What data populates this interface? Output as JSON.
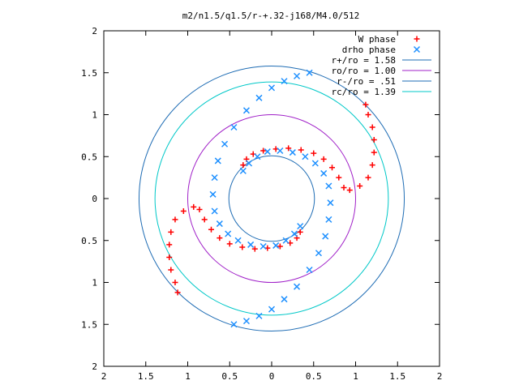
{
  "chart_data": {
    "type": "scatter",
    "title": "m2/n1.5/q1.5/r-+.32-j168/M4.0/512",
    "xlim": [
      -2,
      2
    ],
    "ylim": [
      -2,
      2
    ],
    "x_ticks": [
      -2,
      -1.5,
      -1,
      -0.5,
      0,
      0.5,
      1,
      1.5,
      2
    ],
    "y_ticks": [
      -2,
      -1.5,
      -1,
      -0.5,
      0,
      0.5,
      1,
      1.5,
      2
    ],
    "x_tick_labels": [
      "2",
      "1.5",
      "1",
      "0.5",
      "0",
      "0.5",
      "1",
      "1.5",
      "2"
    ],
    "y_tick_labels": [
      "2",
      "1.5",
      "1",
      "0.5",
      "0",
      "0.5",
      "1",
      "1.5",
      "2"
    ],
    "grid": false,
    "legend_position": "top-right",
    "legend": [
      {
        "label": "W phase",
        "marker": "+",
        "color": "#ff0000"
      },
      {
        "label": "drho phase",
        "marker": "x",
        "color": "#1e90ff"
      },
      {
        "label": "r+/ro = 1.58",
        "line": true,
        "color": "#1e6cb4"
      },
      {
        "label": "ro/ro = 1.00",
        "line": true,
        "color": "#a020c8"
      },
      {
        "label": "r-/ro = .51",
        "line": true,
        "color": "#1e6cb4"
      },
      {
        "label": "rc/ro = 1.39",
        "line": true,
        "color": "#00c8c8"
      }
    ],
    "circles": [
      {
        "name": "r+/ro = 1.58",
        "r": 1.58,
        "color": "#1e6cb4"
      },
      {
        "name": "ro/ro = 1.00",
        "r": 1.0,
        "color": "#a020c8"
      },
      {
        "name": "r-/ro = .51",
        "r": 0.51,
        "color": "#1e6cb4"
      },
      {
        "name": "rc/ro = 1.39",
        "r": 1.39,
        "color": "#00c8c8"
      }
    ],
    "series": [
      {
        "name": "W phase",
        "color": "#ff0000",
        "marker": "+",
        "points": [
          [
            1.12,
            1.12
          ],
          [
            1.15,
            1.0
          ],
          [
            1.2,
            0.85
          ],
          [
            1.22,
            0.7
          ],
          [
            1.22,
            0.55
          ],
          [
            1.2,
            0.4
          ],
          [
            1.15,
            0.25
          ],
          [
            1.05,
            0.15
          ],
          [
            0.93,
            0.1
          ],
          [
            0.86,
            0.13
          ],
          [
            0.8,
            0.25
          ],
          [
            0.72,
            0.37
          ],
          [
            0.62,
            0.47
          ],
          [
            0.5,
            0.54
          ],
          [
            0.35,
            0.58
          ],
          [
            0.2,
            0.6
          ],
          [
            0.05,
            0.59
          ],
          [
            -0.1,
            0.57
          ],
          [
            -0.22,
            0.53
          ],
          [
            -0.3,
            0.47
          ],
          [
            -0.34,
            0.4
          ],
          [
            -1.12,
            -1.12
          ],
          [
            -1.15,
            -1.0
          ],
          [
            -1.2,
            -0.85
          ],
          [
            -1.22,
            -0.7
          ],
          [
            -1.22,
            -0.55
          ],
          [
            -1.2,
            -0.4
          ],
          [
            -1.15,
            -0.25
          ],
          [
            -1.05,
            -0.15
          ],
          [
            -0.93,
            -0.1
          ],
          [
            -0.86,
            -0.13
          ],
          [
            -0.8,
            -0.25
          ],
          [
            -0.72,
            -0.37
          ],
          [
            -0.62,
            -0.47
          ],
          [
            -0.5,
            -0.54
          ],
          [
            -0.35,
            -0.58
          ],
          [
            -0.2,
            -0.6
          ],
          [
            -0.05,
            -0.59
          ],
          [
            0.1,
            -0.57
          ],
          [
            0.22,
            -0.53
          ],
          [
            0.3,
            -0.47
          ],
          [
            0.34,
            -0.4
          ]
        ]
      },
      {
        "name": "drho phase",
        "color": "#1e90ff",
        "marker": "x",
        "points": [
          [
            0.45,
            1.5
          ],
          [
            0.3,
            1.46
          ],
          [
            0.15,
            1.4
          ],
          [
            0.0,
            1.32
          ],
          [
            -0.15,
            1.2
          ],
          [
            -0.3,
            1.05
          ],
          [
            -0.45,
            0.85
          ],
          [
            -0.56,
            0.65
          ],
          [
            -0.64,
            0.45
          ],
          [
            -0.68,
            0.25
          ],
          [
            -0.7,
            0.05
          ],
          [
            -0.68,
            -0.15
          ],
          [
            -0.62,
            -0.3
          ],
          [
            -0.52,
            -0.42
          ],
          [
            -0.4,
            -0.5
          ],
          [
            -0.25,
            -0.55
          ],
          [
            -0.1,
            -0.57
          ],
          [
            0.05,
            -0.56
          ],
          [
            0.17,
            -0.5
          ],
          [
            0.27,
            -0.42
          ],
          [
            0.34,
            -0.33
          ],
          [
            -0.45,
            -1.5
          ],
          [
            -0.3,
            -1.46
          ],
          [
            -0.15,
            -1.4
          ],
          [
            0.0,
            -1.32
          ],
          [
            0.15,
            -1.2
          ],
          [
            0.3,
            -1.05
          ],
          [
            0.45,
            -0.85
          ],
          [
            0.56,
            -0.65
          ],
          [
            0.64,
            -0.45
          ],
          [
            0.68,
            -0.25
          ],
          [
            0.7,
            -0.05
          ],
          [
            0.68,
            0.15
          ],
          [
            0.62,
            0.3
          ],
          [
            0.52,
            0.42
          ],
          [
            0.4,
            0.5
          ],
          [
            0.25,
            0.55
          ],
          [
            0.1,
            0.57
          ],
          [
            -0.05,
            0.56
          ],
          [
            -0.17,
            0.5
          ],
          [
            -0.27,
            0.42
          ],
          [
            -0.34,
            0.33
          ]
        ]
      }
    ]
  }
}
